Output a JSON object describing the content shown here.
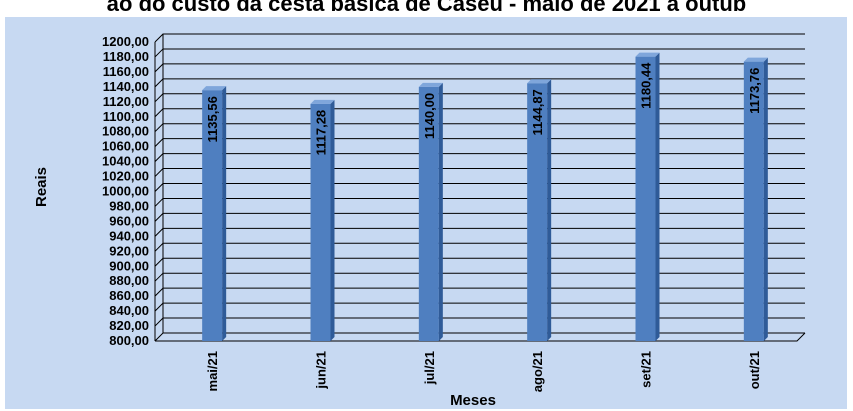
{
  "title": "ão do custo da cesta básica de Caseu - maio de 2021 a outub",
  "chart_data": {
    "type": "bar",
    "title": "ão do custo da cesta básica de Caseu - maio de 2021 a outub",
    "xlabel": "Meses",
    "ylabel": "Reais",
    "categories": [
      "mai/21",
      "jun/21",
      "jul/21",
      "ago/21",
      "set/21",
      "out/21"
    ],
    "values": [
      1135.56,
      1117.28,
      1140.0,
      1144.87,
      1180.44,
      1173.76
    ],
    "value_labels": [
      "1135,56",
      "1117,28",
      "1140,00",
      "1144,87",
      "1180,44",
      "1173,76"
    ],
    "ylim": [
      800,
      1200
    ],
    "yticks": [
      "800,00",
      "820,00",
      "840,00",
      "860,00",
      "880,00",
      "900,00",
      "920,00",
      "940,00",
      "960,00",
      "980,00",
      "1000,00",
      "1020,00",
      "1040,00",
      "1060,00",
      "1080,00",
      "1100,00",
      "1120,00",
      "1140,00",
      "1160,00",
      "1180,00",
      "1200,00"
    ],
    "grid": true,
    "legend": "none",
    "colors": {
      "background": "#c7d9f2",
      "bar_front": "#4f7fc0",
      "bar_side": "#2f5b98",
      "bar_top": "#7fa6db",
      "grid": "#000000"
    }
  }
}
